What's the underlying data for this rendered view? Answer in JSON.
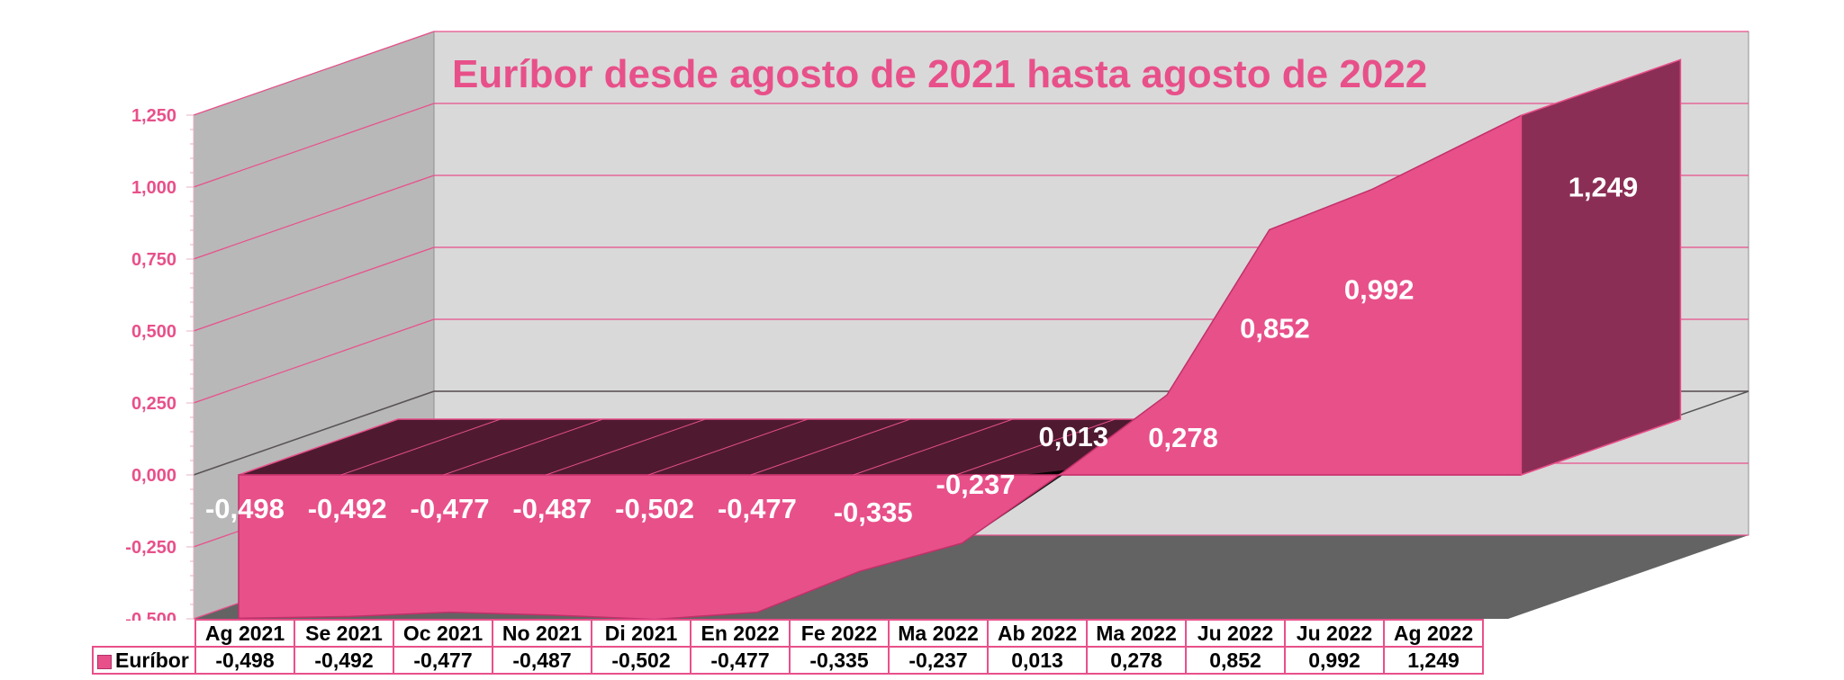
{
  "chart_data": {
    "type": "area",
    "title": "Euríbor desde agosto de 2021 hasta agosto de 2022",
    "categories": [
      "Ag 2021",
      "Se 2021",
      "Oc 2021",
      "No 2021",
      "Di 2021",
      "En 2022",
      "Fe 2022",
      "Ma 2022",
      "Ab 2022",
      "Ma 2022",
      "Ju 2022",
      "Ju 2022",
      "Ag 2022"
    ],
    "series": [
      {
        "name": "Euríbor",
        "values": [
          -0.498,
          -0.492,
          -0.477,
          -0.487,
          -0.502,
          -0.477,
          -0.335,
          -0.237,
          0.013,
          0.278,
          0.852,
          0.992,
          1.249
        ],
        "labels": [
          "-0,498",
          "-0,492",
          "-0,477",
          "-0,487",
          "-0,502",
          "-0,477",
          "-0,335",
          "-0,237",
          "0,013",
          "0,278",
          "0,852",
          "0,992",
          "1,249"
        ]
      }
    ],
    "yticks": [
      "-0,500",
      "-0,250",
      "0,000",
      "0,250",
      "0,500",
      "0,750",
      "1,000",
      "1,250"
    ],
    "ylim": [
      -0.5,
      1.25
    ],
    "grid": true,
    "legend": "data-table",
    "colors": {
      "series": "#e8508a",
      "series_dark": "#8b2e55",
      "top": "#4f1a30",
      "wall": "#d9d9d9",
      "side_wall": "#b8b8b8",
      "floor": "#636363",
      "text": "#e8508a"
    }
  }
}
